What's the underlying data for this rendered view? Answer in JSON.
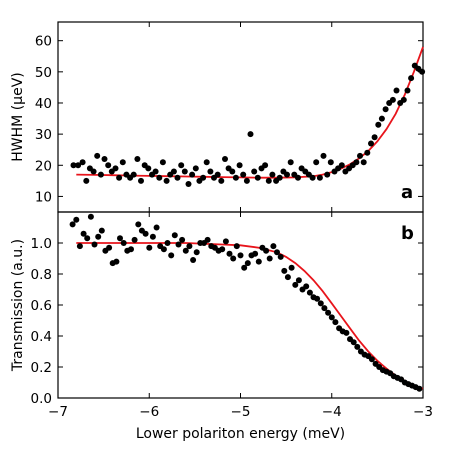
{
  "chart_data": [
    {
      "panel_label": "a",
      "type": "scatter",
      "xlabel": "Lower polariton energy (meV)",
      "ylabel": "HWHM (μeV)",
      "xlim": [
        -7,
        -3
      ],
      "ylim": [
        5,
        66
      ],
      "xticks": [
        "−7",
        "−6",
        "−5",
        "−4",
        "−3"
      ],
      "yticks": [
        10,
        20,
        30,
        40,
        50,
        60
      ],
      "grid": false,
      "colors": {
        "points": "#000000",
        "fit": "#e8141b"
      },
      "points": {
        "x": [
          -6.83,
          -6.78,
          -6.73,
          -6.69,
          -6.65,
          -6.61,
          -6.57,
          -6.53,
          -6.49,
          -6.45,
          -6.41,
          -6.37,
          -6.33,
          -6.29,
          -6.25,
          -6.21,
          -6.17,
          -6.13,
          -6.09,
          -6.05,
          -6.01,
          -5.97,
          -5.93,
          -5.89,
          -5.85,
          -5.81,
          -5.77,
          -5.73,
          -5.69,
          -5.65,
          -5.61,
          -5.57,
          -5.53,
          -5.49,
          -5.45,
          -5.41,
          -5.37,
          -5.33,
          -5.29,
          -5.25,
          -5.21,
          -5.17,
          -5.13,
          -5.09,
          -5.05,
          -5.01,
          -4.97,
          -4.93,
          -4.89,
          -4.85,
          -4.81,
          -4.77,
          -4.73,
          -4.69,
          -4.65,
          -4.61,
          -4.57,
          -4.53,
          -4.49,
          -4.45,
          -4.41,
          -4.37,
          -4.33,
          -4.29,
          -4.25,
          -4.21,
          -4.17,
          -4.13,
          -4.09,
          -4.05,
          -4.01,
          -3.97,
          -3.93,
          -3.89,
          -3.85,
          -3.81,
          -3.77,
          -3.73,
          -3.69,
          -3.65,
          -3.61,
          -3.57,
          -3.53,
          -3.49,
          -3.45,
          -3.41,
          -3.37,
          -3.33,
          -3.29,
          -3.25,
          -3.21,
          -3.17,
          -3.13,
          -3.09,
          -3.05,
          -3.01
        ],
        "y": [
          20,
          20,
          21,
          15,
          19,
          18,
          23,
          17,
          22,
          20,
          18,
          19,
          16,
          21,
          17,
          16,
          17,
          22,
          15,
          20,
          19,
          17,
          18,
          16,
          21,
          15,
          17,
          18,
          16,
          20,
          18,
          14,
          17,
          19,
          15,
          16,
          21,
          18,
          16,
          17,
          15,
          22,
          19,
          18,
          16,
          20,
          17,
          15,
          30,
          18,
          16,
          19,
          20,
          15,
          17,
          15,
          16,
          18,
          17,
          21,
          17,
          16,
          19,
          18,
          17,
          16,
          21,
          16,
          23,
          17,
          21,
          18,
          19,
          20,
          18,
          19,
          20,
          21,
          23,
          21,
          24,
          27,
          29,
          33,
          35,
          38,
          40,
          41,
          44,
          40,
          41,
          44,
          48,
          52,
          51,
          50
        ]
      },
      "fit_curve": {
        "x": [
          -6.8,
          -6.6,
          -6.4,
          -6.2,
          -6.0,
          -5.8,
          -5.6,
          -5.4,
          -5.2,
          -5.0,
          -4.8,
          -4.6,
          -4.4,
          -4.2,
          -4.1,
          -4.0,
          -3.9,
          -3.8,
          -3.7,
          -3.6,
          -3.5,
          -3.4,
          -3.3,
          -3.2,
          -3.1,
          -3.0
        ],
        "y": [
          17.0,
          16.9,
          16.8,
          16.7,
          16.6,
          16.5,
          16.4,
          16.3,
          16.2,
          16.1,
          16.0,
          16.0,
          16.1,
          16.5,
          17.0,
          17.8,
          18.9,
          20.3,
          22.2,
          24.6,
          27.7,
          31.6,
          36.5,
          42.7,
          50.0,
          58.0
        ]
      }
    },
    {
      "panel_label": "b",
      "type": "scatter",
      "xlabel": "Lower polariton energy (meV)",
      "ylabel": "Transmission (a.u.)",
      "xlim": [
        -7,
        -3
      ],
      "ylim": [
        0,
        1.2
      ],
      "xticks": [
        "−7",
        "−6",
        "−5",
        "−4",
        "−3"
      ],
      "yticks": [
        "0.0",
        "0.2",
        "0.4",
        "0.6",
        "0.8",
        "1.0"
      ],
      "grid": false,
      "colors": {
        "points": "#000000",
        "fit": "#e8141b"
      },
      "points": {
        "x": [
          -6.84,
          -6.8,
          -6.76,
          -6.72,
          -6.68,
          -6.64,
          -6.6,
          -6.56,
          -6.52,
          -6.48,
          -6.44,
          -6.4,
          -6.36,
          -6.32,
          -6.28,
          -6.24,
          -6.2,
          -6.16,
          -6.12,
          -6.08,
          -6.04,
          -6.0,
          -5.96,
          -5.92,
          -5.88,
          -5.84,
          -5.8,
          -5.76,
          -5.72,
          -5.68,
          -5.64,
          -5.6,
          -5.56,
          -5.52,
          -5.48,
          -5.44,
          -5.4,
          -5.36,
          -5.32,
          -5.28,
          -5.24,
          -5.2,
          -5.16,
          -5.12,
          -5.08,
          -5.04,
          -5.0,
          -4.96,
          -4.92,
          -4.88,
          -4.84,
          -4.8,
          -4.76,
          -4.72,
          -4.68,
          -4.64,
          -4.6,
          -4.56,
          -4.52,
          -4.48,
          -4.44,
          -4.4,
          -4.36,
          -4.32,
          -4.28,
          -4.24,
          -4.2,
          -4.16,
          -4.12,
          -4.08,
          -4.04,
          -4.0,
          -3.96,
          -3.92,
          -3.88,
          -3.84,
          -3.8,
          -3.76,
          -3.72,
          -3.68,
          -3.64,
          -3.6,
          -3.56,
          -3.52,
          -3.48,
          -3.44,
          -3.4,
          -3.36,
          -3.32,
          -3.28,
          -3.24,
          -3.2,
          -3.16,
          -3.12,
          -3.08,
          -3.04
        ],
        "y": [
          1.12,
          1.15,
          0.98,
          1.06,
          1.03,
          1.17,
          0.99,
          1.04,
          1.08,
          0.95,
          0.97,
          0.87,
          0.88,
          1.03,
          1.0,
          0.95,
          0.96,
          1.02,
          1.12,
          1.08,
          1.06,
          0.97,
          1.04,
          1.1,
          0.98,
          0.96,
          1.0,
          0.92,
          1.05,
          0.99,
          1.02,
          0.95,
          0.98,
          0.89,
          0.94,
          1.0,
          1.0,
          1.02,
          0.98,
          0.97,
          0.95,
          0.96,
          1.01,
          0.93,
          0.9,
          0.98,
          0.92,
          0.84,
          0.87,
          0.92,
          0.93,
          0.88,
          0.97,
          0.95,
          0.9,
          0.98,
          0.94,
          0.91,
          0.82,
          0.78,
          0.84,
          0.73,
          0.76,
          0.7,
          0.72,
          0.68,
          0.65,
          0.64,
          0.61,
          0.58,
          0.55,
          0.52,
          0.49,
          0.45,
          0.43,
          0.42,
          0.38,
          0.36,
          0.33,
          0.3,
          0.28,
          0.27,
          0.25,
          0.22,
          0.2,
          0.18,
          0.17,
          0.16,
          0.14,
          0.13,
          0.12,
          0.1,
          0.09,
          0.08,
          0.07,
          0.06
        ]
      },
      "fit_curve": {
        "x": [
          -6.8,
          -6.4,
          -6.0,
          -5.6,
          -5.2,
          -5.0,
          -4.8,
          -4.6,
          -4.5,
          -4.4,
          -4.3,
          -4.2,
          -4.1,
          -4.0,
          -3.9,
          -3.8,
          -3.7,
          -3.6,
          -3.5,
          -3.4,
          -3.3,
          -3.2,
          -3.1,
          -3.0
        ],
        "y": [
          1.0,
          1.0,
          1.0,
          1.0,
          0.99,
          0.985,
          0.97,
          0.94,
          0.91,
          0.87,
          0.82,
          0.76,
          0.69,
          0.61,
          0.53,
          0.45,
          0.37,
          0.3,
          0.24,
          0.19,
          0.145,
          0.11,
          0.08,
          0.06
        ]
      }
    }
  ]
}
